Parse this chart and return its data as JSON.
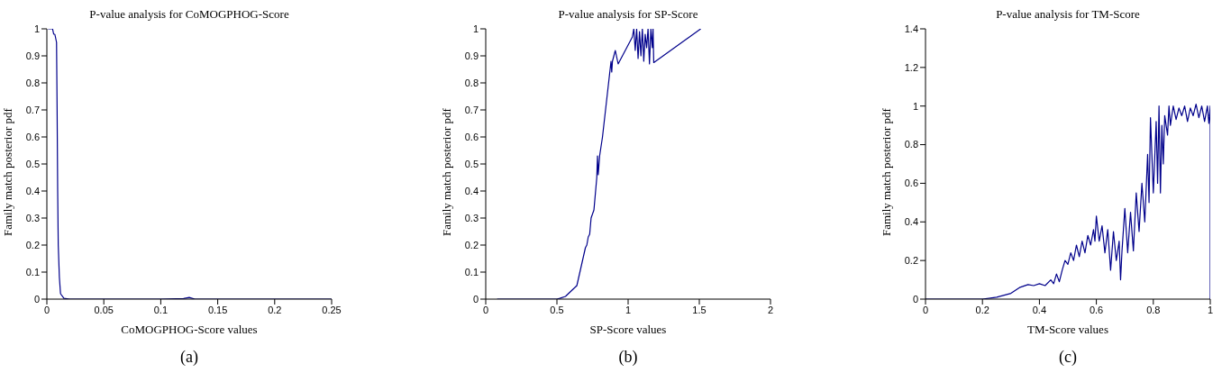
{
  "chart_data": [
    {
      "type": "line",
      "title": "P-value analysis for CoMOGPHOG-Score",
      "xlabel": "CoMOGPHOG-Score values",
      "ylabel": "Family match posterior pdf",
      "annotations": [
        "(a)"
      ],
      "color": "#00008b",
      "x": [
        0.001,
        0.005,
        0.006,
        0.007,
        0.0085,
        0.009,
        0.0095,
        0.01,
        0.011,
        0.012,
        0.015,
        0.02,
        0.1,
        0.12,
        0.125,
        0.13,
        0.25
      ],
      "values": [
        1,
        1,
        0.98,
        0.98,
        0.95,
        0.7,
        0.4,
        0.2,
        0.08,
        0.02,
        0.003,
        0,
        0,
        0.002,
        0.006,
        0,
        0
      ],
      "xlim": [
        0,
        0.25
      ],
      "xticks": [
        0,
        0.05,
        0.1,
        0.15,
        0.2,
        0.25
      ],
      "ylim": [
        0,
        1
      ],
      "yticks": [
        0,
        0.1,
        0.2,
        0.3,
        0.4,
        0.5,
        0.6,
        0.7,
        0.8,
        0.9,
        1
      ]
    },
    {
      "type": "line",
      "title": "P-value analysis for SP-Score",
      "xlabel": "SP-Score values",
      "ylabel": "Family match posterior pdf",
      "annotations": [
        "(b)"
      ],
      "color": "#00008b",
      "x": [
        0.08,
        0.5,
        0.52,
        0.56,
        0.64,
        0.7,
        0.71,
        0.72,
        0.73,
        0.74,
        0.76,
        0.78,
        0.785,
        0.79,
        0.8,
        0.82,
        0.88,
        0.885,
        0.89,
        0.91,
        0.93,
        1.03,
        1.04,
        1.05,
        1.06,
        1.07,
        1.08,
        1.09,
        1.1,
        1.11,
        1.12,
        1.13,
        1.14,
        1.15,
        1.16,
        1.17,
        1.175,
        1.18,
        1.51
      ],
      "values": [
        0,
        0,
        0.003,
        0.01,
        0.05,
        0.19,
        0.2,
        0.23,
        0.24,
        0.3,
        0.33,
        0.45,
        0.53,
        0.46,
        0.53,
        0.6,
        0.88,
        0.84,
        0.88,
        0.92,
        0.87,
        0.97,
        1,
        0.92,
        1,
        0.89,
        0.99,
        0.9,
        1,
        0.88,
        0.98,
        0.93,
        1,
        0.87,
        1,
        0.93,
        1,
        0.875,
        1
      ],
      "xlim": [
        0,
        2
      ],
      "xticks": [
        0,
        0.5,
        1,
        1.5,
        2
      ],
      "ylim": [
        0,
        1
      ],
      "yticks": [
        0,
        0.1,
        0.2,
        0.3,
        0.4,
        0.5,
        0.6,
        0.7,
        0.8,
        0.9,
        1
      ]
    },
    {
      "type": "line",
      "title": "P-value analysis for TM-Score",
      "xlabel": "TM-Score values",
      "ylabel": "Family match posterior pdf",
      "annotations": [
        "(c)"
      ],
      "color": "#00008b",
      "x": [
        0,
        0.2,
        0.25,
        0.3,
        0.33,
        0.36,
        0.38,
        0.4,
        0.42,
        0.44,
        0.45,
        0.46,
        0.47,
        0.48,
        0.49,
        0.5,
        0.51,
        0.52,
        0.53,
        0.54,
        0.55,
        0.56,
        0.57,
        0.58,
        0.59,
        0.595,
        0.6,
        0.61,
        0.62,
        0.63,
        0.64,
        0.65,
        0.66,
        0.67,
        0.68,
        0.685,
        0.69,
        0.7,
        0.71,
        0.72,
        0.73,
        0.74,
        0.75,
        0.76,
        0.77,
        0.78,
        0.785,
        0.79,
        0.8,
        0.81,
        0.815,
        0.82,
        0.825,
        0.83,
        0.835,
        0.84,
        0.85,
        0.855,
        0.86,
        0.87,
        0.88,
        0.89,
        0.9,
        0.91,
        0.92,
        0.93,
        0.94,
        0.95,
        0.96,
        0.97,
        0.98,
        0.99,
        0.995,
        1,
        1
      ],
      "values": [
        0,
        0,
        0.01,
        0.03,
        0.06,
        0.075,
        0.07,
        0.08,
        0.07,
        0.1,
        0.08,
        0.13,
        0.09,
        0.15,
        0.2,
        0.18,
        0.24,
        0.2,
        0.28,
        0.22,
        0.3,
        0.24,
        0.33,
        0.28,
        0.36,
        0.3,
        0.43,
        0.3,
        0.38,
        0.24,
        0.36,
        0.15,
        0.35,
        0.2,
        0.3,
        0.1,
        0.25,
        0.47,
        0.24,
        0.45,
        0.25,
        0.55,
        0.35,
        0.6,
        0.4,
        0.75,
        0.5,
        0.94,
        0.55,
        0.92,
        0.6,
        1,
        0.55,
        0.9,
        0.7,
        0.95,
        0.85,
        1,
        0.9,
        1,
        0.93,
        0.99,
        0.95,
        1,
        0.92,
        0.99,
        0.95,
        1.01,
        0.94,
        1,
        0.92,
        1,
        0.91,
        1,
        0
      ],
      "xlim": [
        0,
        1
      ],
      "xticks": [
        0,
        0.2,
        0.4,
        0.6,
        0.8,
        1
      ],
      "ylim": [
        0,
        1.4
      ],
      "yticks": [
        0,
        0.2,
        0.4,
        0.6,
        0.8,
        1,
        1.2,
        1.4
      ]
    }
  ]
}
